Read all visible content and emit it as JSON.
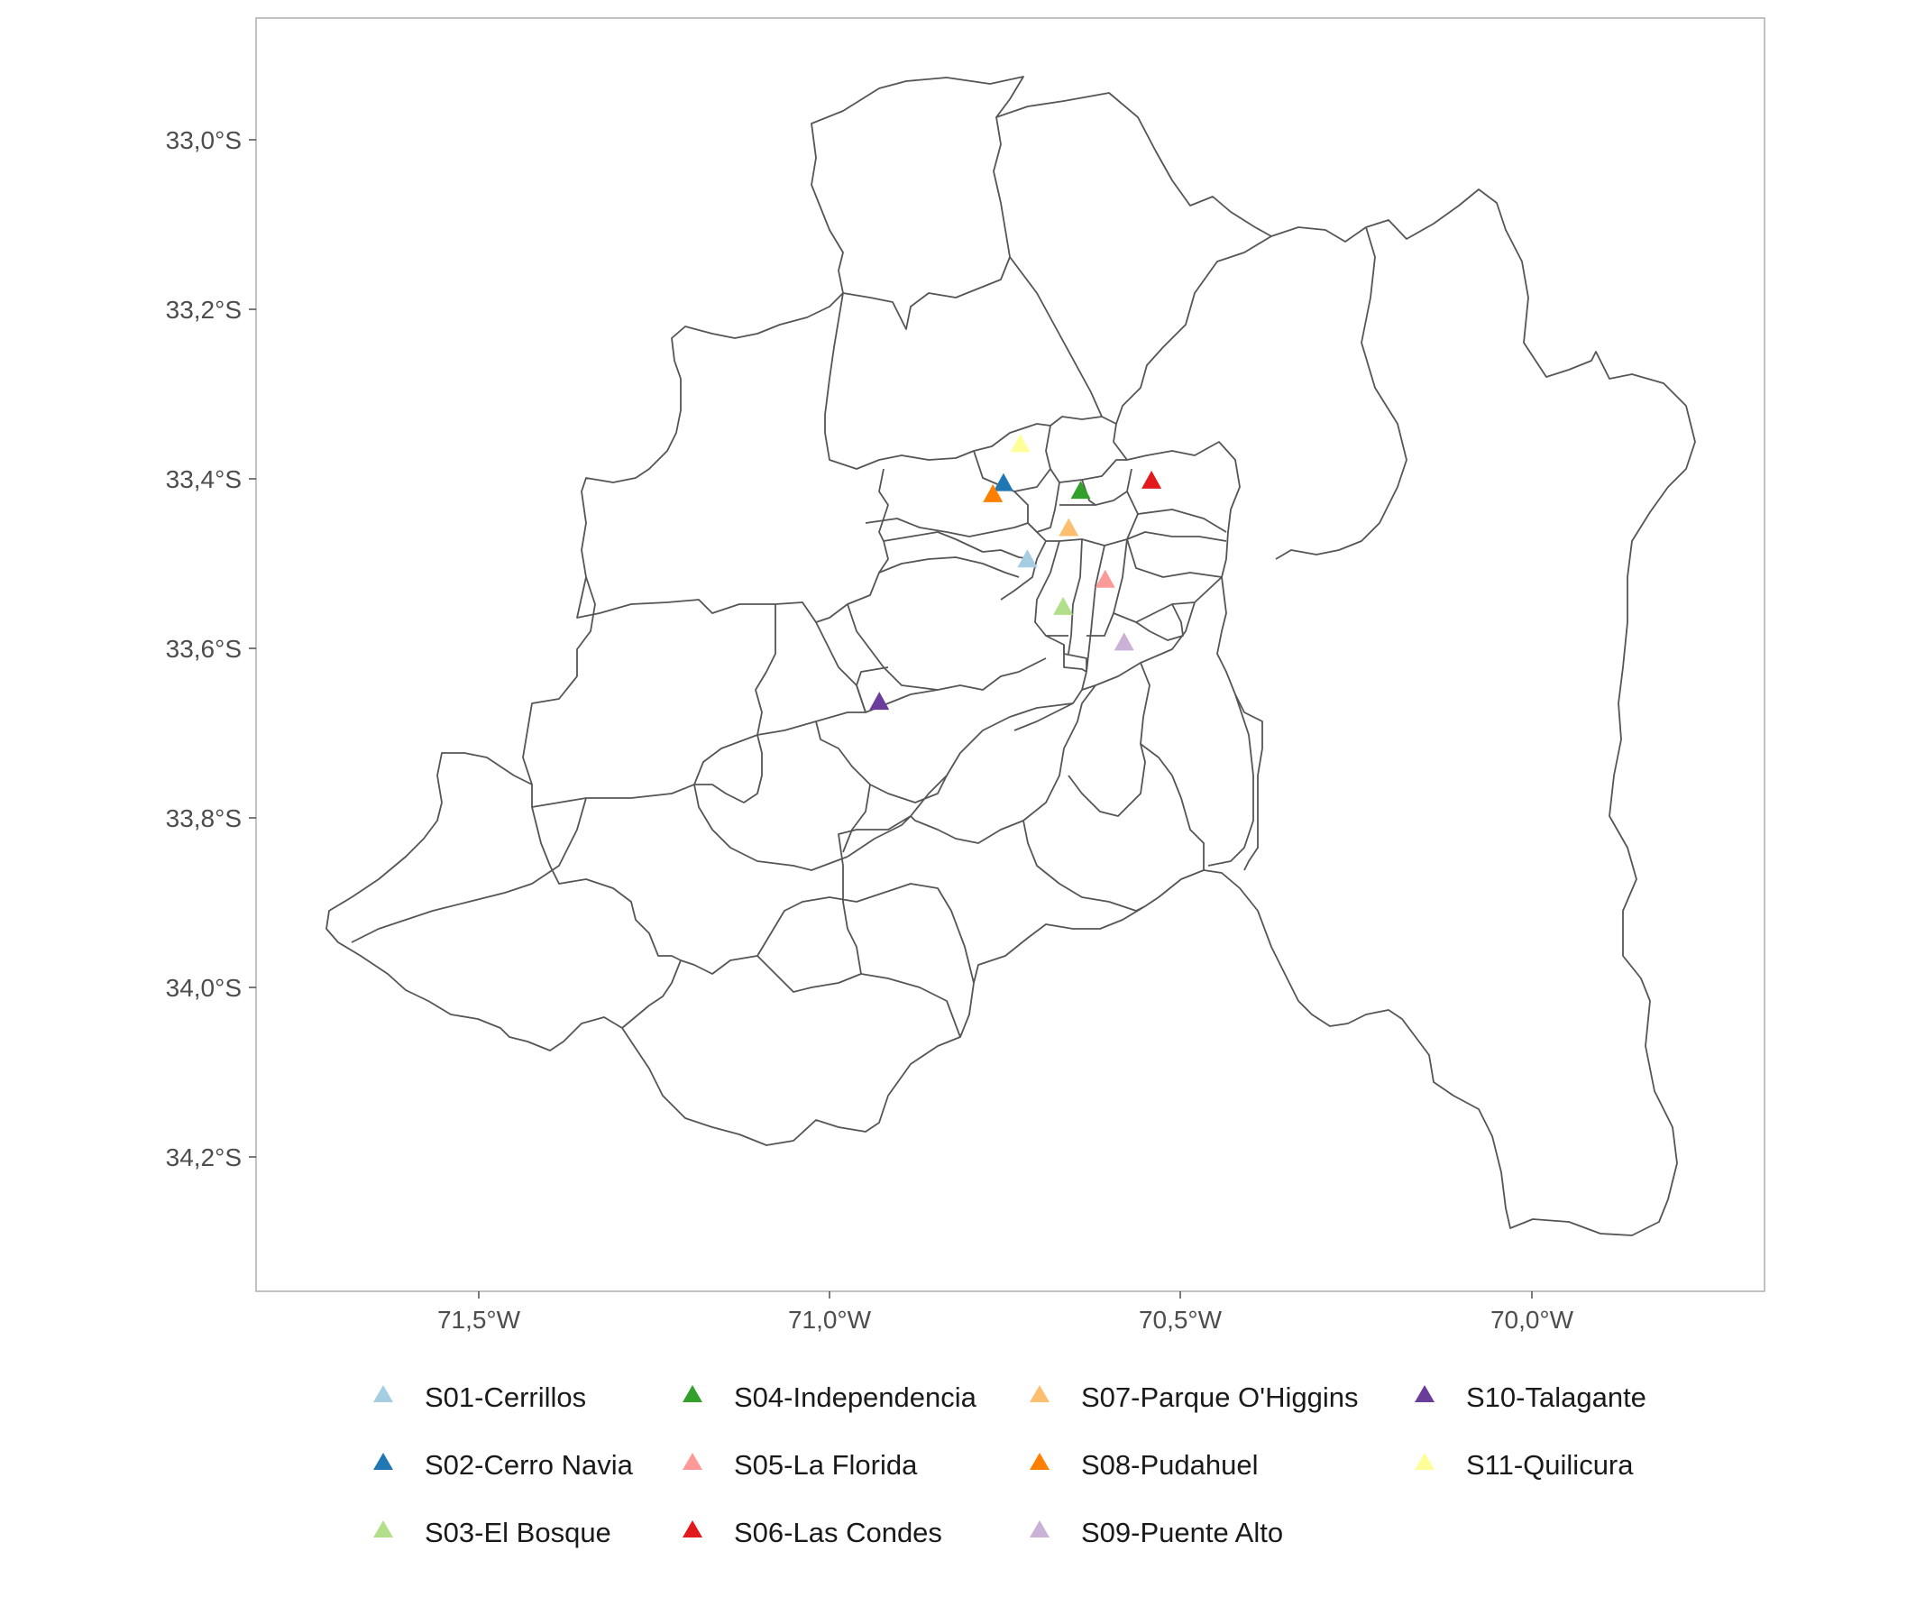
{
  "map": {
    "axes": {
      "x_ticks": [
        "71,5°W",
        "71,0°W",
        "70,5°W",
        "70,0°W"
      ],
      "y_ticks": [
        "33,0°S",
        "33,2°S",
        "33,4°S",
        "33,6°S",
        "33,8°S",
        "34,0°S",
        "34,2°S"
      ],
      "x_range_deg_w": [
        71.82,
        69.67
      ],
      "y_range_deg_s": [
        32.86,
        34.36
      ]
    },
    "colors": {
      "boundary": "#555555",
      "panel_border": "#b3b3b3",
      "background": "#ffffff"
    },
    "stations": [
      {
        "label": "S01-Cerrillos",
        "color": "#a6cee3",
        "lon": -70.718,
        "lat": -33.496
      },
      {
        "label": "S02-Cerro Navia",
        "color": "#1f78b4",
        "lon": -70.752,
        "lat": -33.406
      },
      {
        "label": "S03-El Bosque",
        "color": "#b2df8a",
        "lon": -70.667,
        "lat": -33.552
      },
      {
        "label": "S04-Independencia",
        "color": "#33a02c",
        "lon": -70.642,
        "lat": -33.415
      },
      {
        "label": "S05-La Florida",
        "color": "#fb9a99",
        "lon": -70.607,
        "lat": -33.52
      },
      {
        "label": "S06-Las Condes",
        "color": "#e31a1c",
        "lon": -70.541,
        "lat": -33.403
      },
      {
        "label": "S07-Parque O'Higgins",
        "color": "#fdbf6f",
        "lon": -70.659,
        "lat": -33.459
      },
      {
        "label": "S08-Pudahuel",
        "color": "#ff7f00",
        "lon": -70.767,
        "lat": -33.419
      },
      {
        "label": "S09-Puente Alto",
        "color": "#cab2d6",
        "lon": -70.58,
        "lat": -33.594
      },
      {
        "label": "S10-Talagante",
        "color": "#6a3d9a",
        "lon": -70.929,
        "lat": -33.664
      },
      {
        "label": "S11-Quilicura",
        "color": "#ffff99",
        "lon": -70.728,
        "lat": -33.36
      }
    ]
  }
}
